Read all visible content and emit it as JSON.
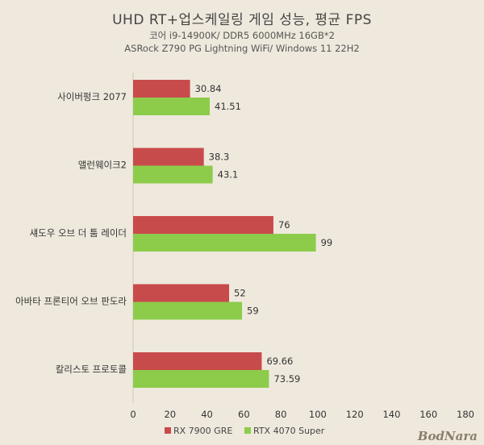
{
  "chart_data": {
    "type": "bar",
    "orientation": "horizontal",
    "title": "UHD RT+업스케일링 게임 성능, 평균 FPS",
    "subtitle_lines": [
      "코어 i9-14900K/ DDR5 6000MHz 16GB*2",
      "ASRock Z790 PG Lightning WiFi/ Windows 11 22H2"
    ],
    "categories": [
      "사이버펑크 2077",
      "앨런웨이크2",
      "섀도우 오브 더 툼 레이더",
      "아바타 프론티어 오브 판도라",
      "칼리스토 프로토콜"
    ],
    "series": [
      {
        "name": "RX 7900 GRE",
        "color": "#c84b4b",
        "values": [
          30.84,
          38.3,
          76,
          52,
          69.66
        ],
        "labels": [
          "30.84",
          "38.3",
          "76",
          "52",
          "69.66"
        ]
      },
      {
        "name": "RTX 4070 Super",
        "color": "#8ccc4a",
        "values": [
          41.51,
          43.1,
          99,
          59,
          73.59
        ],
        "labels": [
          "41.51",
          "43.1",
          "99",
          "59",
          "73.59"
        ]
      }
    ],
    "xlim": [
      0,
      180
    ],
    "xticks": [
      0,
      20,
      40,
      60,
      80,
      100,
      120,
      140,
      160,
      180
    ],
    "grid": false,
    "legend_position": "bottom"
  },
  "watermark": "BodNara"
}
